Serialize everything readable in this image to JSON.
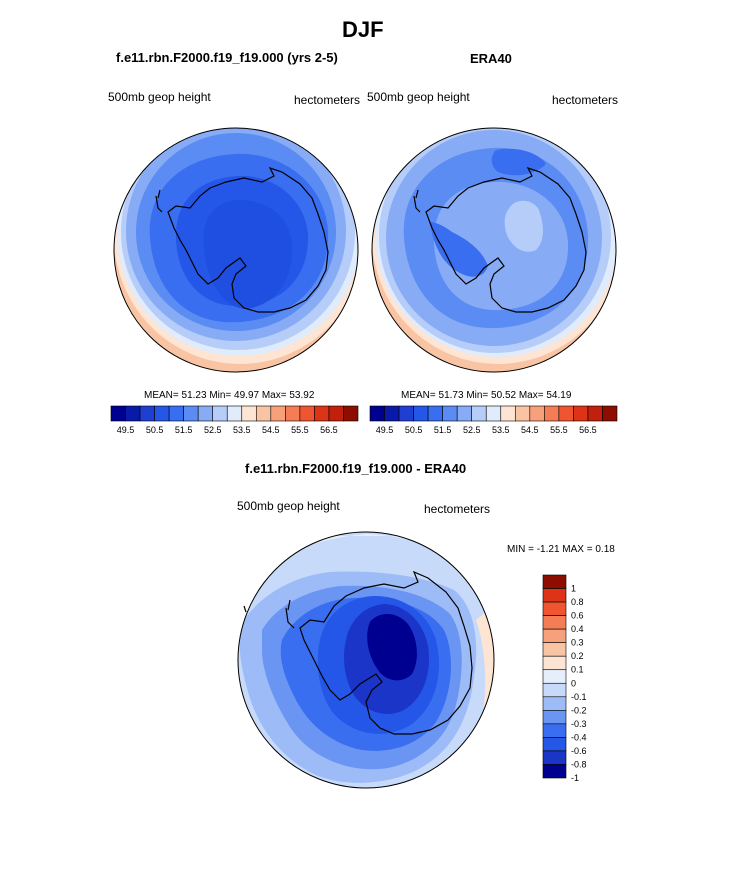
{
  "page": {
    "title": "DJF"
  },
  "palettes": {
    "field": [
      "#000090",
      "#0a1aa8",
      "#1f3fd0",
      "#2456e8",
      "#3a6ef0",
      "#5a8cf3",
      "#87abf5",
      "#b5cdf8",
      "#e0ebfb",
      "#fde4d3",
      "#f9c4a3",
      "#f7a07c",
      "#f47d55",
      "#ee5530",
      "#dd3418",
      "#c0200c",
      "#8d0d00"
    ],
    "diff": [
      "#000090",
      "#1a35c8",
      "#2456e8",
      "#3a6ef0",
      "#6a95f3",
      "#9dbcf7",
      "#c8dafa",
      "#e6eefc",
      "#fde4d3",
      "#f9c4a3",
      "#f7a07c",
      "#f47d55",
      "#ee5530",
      "#dd3418",
      "#8d0d00"
    ]
  },
  "chart_data": [
    {
      "type": "heatmap",
      "projection": "south polar stereographic",
      "title": "f.e11.rbn.F2000.f19_f19.000 (yrs 2-5)",
      "left_label": "500mb geop height",
      "right_label": "hectometers",
      "stats": {
        "mean": "51.23",
        "min": "49.97",
        "max": "53.92"
      },
      "stats_text": "MEAN=  51.23  Min=  49.97  Max=  53.92",
      "levels": [
        "49.5",
        "50.5",
        "51.5",
        "52.5",
        "53.5",
        "54.5",
        "55.5",
        "56.5"
      ]
    },
    {
      "type": "heatmap",
      "projection": "south polar stereographic",
      "title": "ERA40",
      "left_label": "500mb geop height",
      "right_label": "hectometers",
      "stats": {
        "mean": "51.73",
        "min": "50.52",
        "max": "54.19"
      },
      "stats_text": "MEAN=  51.73  Min=  50.52  Max=  54.19",
      "levels": [
        "49.5",
        "50.5",
        "51.5",
        "52.5",
        "53.5",
        "54.5",
        "55.5",
        "56.5"
      ]
    },
    {
      "type": "heatmap",
      "projection": "south polar stereographic",
      "title": "f.e11.rbn.F2000.f19_f19.000 - ERA40",
      "left_label": "500mb geop height",
      "right_label": "hectometers",
      "stats": {
        "min": "-1.21",
        "max": "0.18"
      },
      "stats_text": "MIN =  -1.21 MAX =   0.18",
      "levels": [
        "1",
        "0.8",
        "0.6",
        "0.4",
        "0.3",
        "0.2",
        "0.1",
        "0",
        "-0.1",
        "-0.2",
        "-0.3",
        "-0.4",
        "-0.6",
        "-0.8",
        "-1"
      ]
    }
  ]
}
